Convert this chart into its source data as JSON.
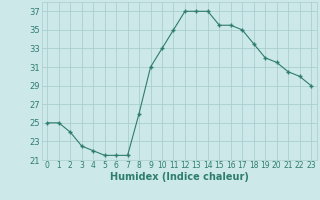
{
  "x": [
    0,
    1,
    2,
    3,
    4,
    5,
    6,
    7,
    8,
    9,
    10,
    11,
    12,
    13,
    14,
    15,
    16,
    17,
    18,
    19,
    20,
    21,
    22,
    23
  ],
  "y": [
    25,
    25,
    24,
    22.5,
    22,
    21.5,
    21.5,
    21.5,
    26,
    31,
    33,
    35,
    37,
    37,
    37,
    35.5,
    35.5,
    35,
    33.5,
    32,
    31.5,
    30.5,
    30,
    29
  ],
  "line_color": "#2e7d6e",
  "marker": "+",
  "marker_size": 3.5,
  "marker_lw": 1.0,
  "line_width": 0.8,
  "bg_color": "#cce8e8",
  "grid_color": "#aacece",
  "tick_color": "#2e7d6e",
  "xlabel": "Humidex (Indice chaleur)",
  "xlabel_fontsize": 7,
  "xlabel_color": "#2e7d6e",
  "ylabel_fontsize": 6,
  "tick_fontsize": 5.5,
  "xlim": [
    -0.5,
    23.5
  ],
  "ylim": [
    21,
    38
  ],
  "yticks": [
    21,
    23,
    25,
    27,
    29,
    31,
    33,
    35,
    37
  ],
  "xticks": [
    0,
    1,
    2,
    3,
    4,
    5,
    6,
    7,
    8,
    9,
    10,
    11,
    12,
    13,
    14,
    15,
    16,
    17,
    18,
    19,
    20,
    21,
    22,
    23
  ]
}
